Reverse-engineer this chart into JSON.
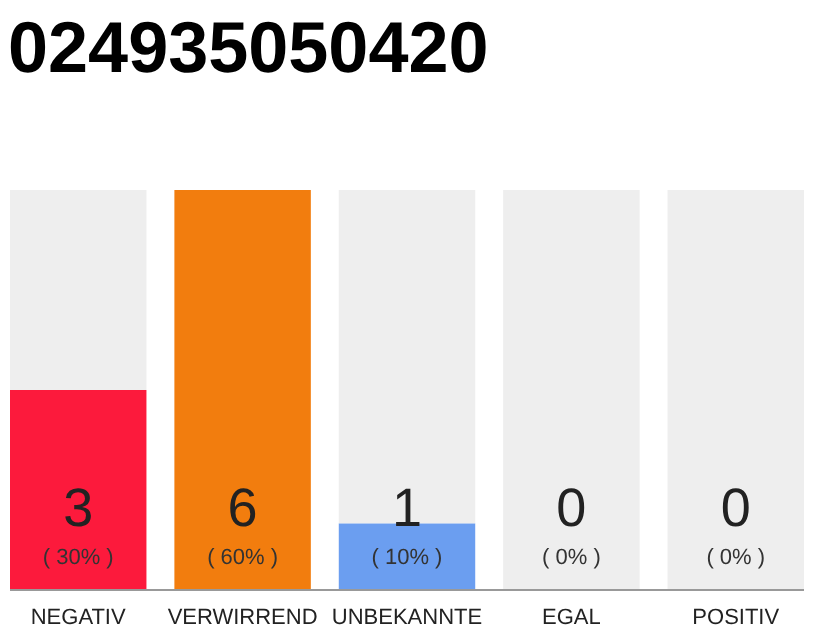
{
  "chart_data": {
    "type": "bar",
    "title": "024935050420",
    "stacked": true,
    "categories": [
      "NEGATIV",
      "VERWIRREND",
      "UNBEKANNTE",
      "EGAL",
      "POSITIV"
    ],
    "series": [
      {
        "values": [
          3,
          6,
          1,
          0,
          0
        ],
        "colors": [
          "#fc1a3c",
          "#f27d0e",
          "#6b9ef0",
          "#6b9ef0",
          "#6b9ef0"
        ],
        "value_labels": [
          "3",
          "6",
          "1",
          null,
          null
        ]
      },
      {
        "values": [
          3,
          0,
          5,
          6,
          6
        ],
        "color": "#eeeeee"
      }
    ],
    "ylim": [
      0,
      6
    ],
    "tick_labels": "x",
    "annotations": [
      "( 30% )",
      "( 60% )",
      "( 10% )",
      "( 0% )",
      "( 0% )",
      "0",
      "0"
    ]
  }
}
